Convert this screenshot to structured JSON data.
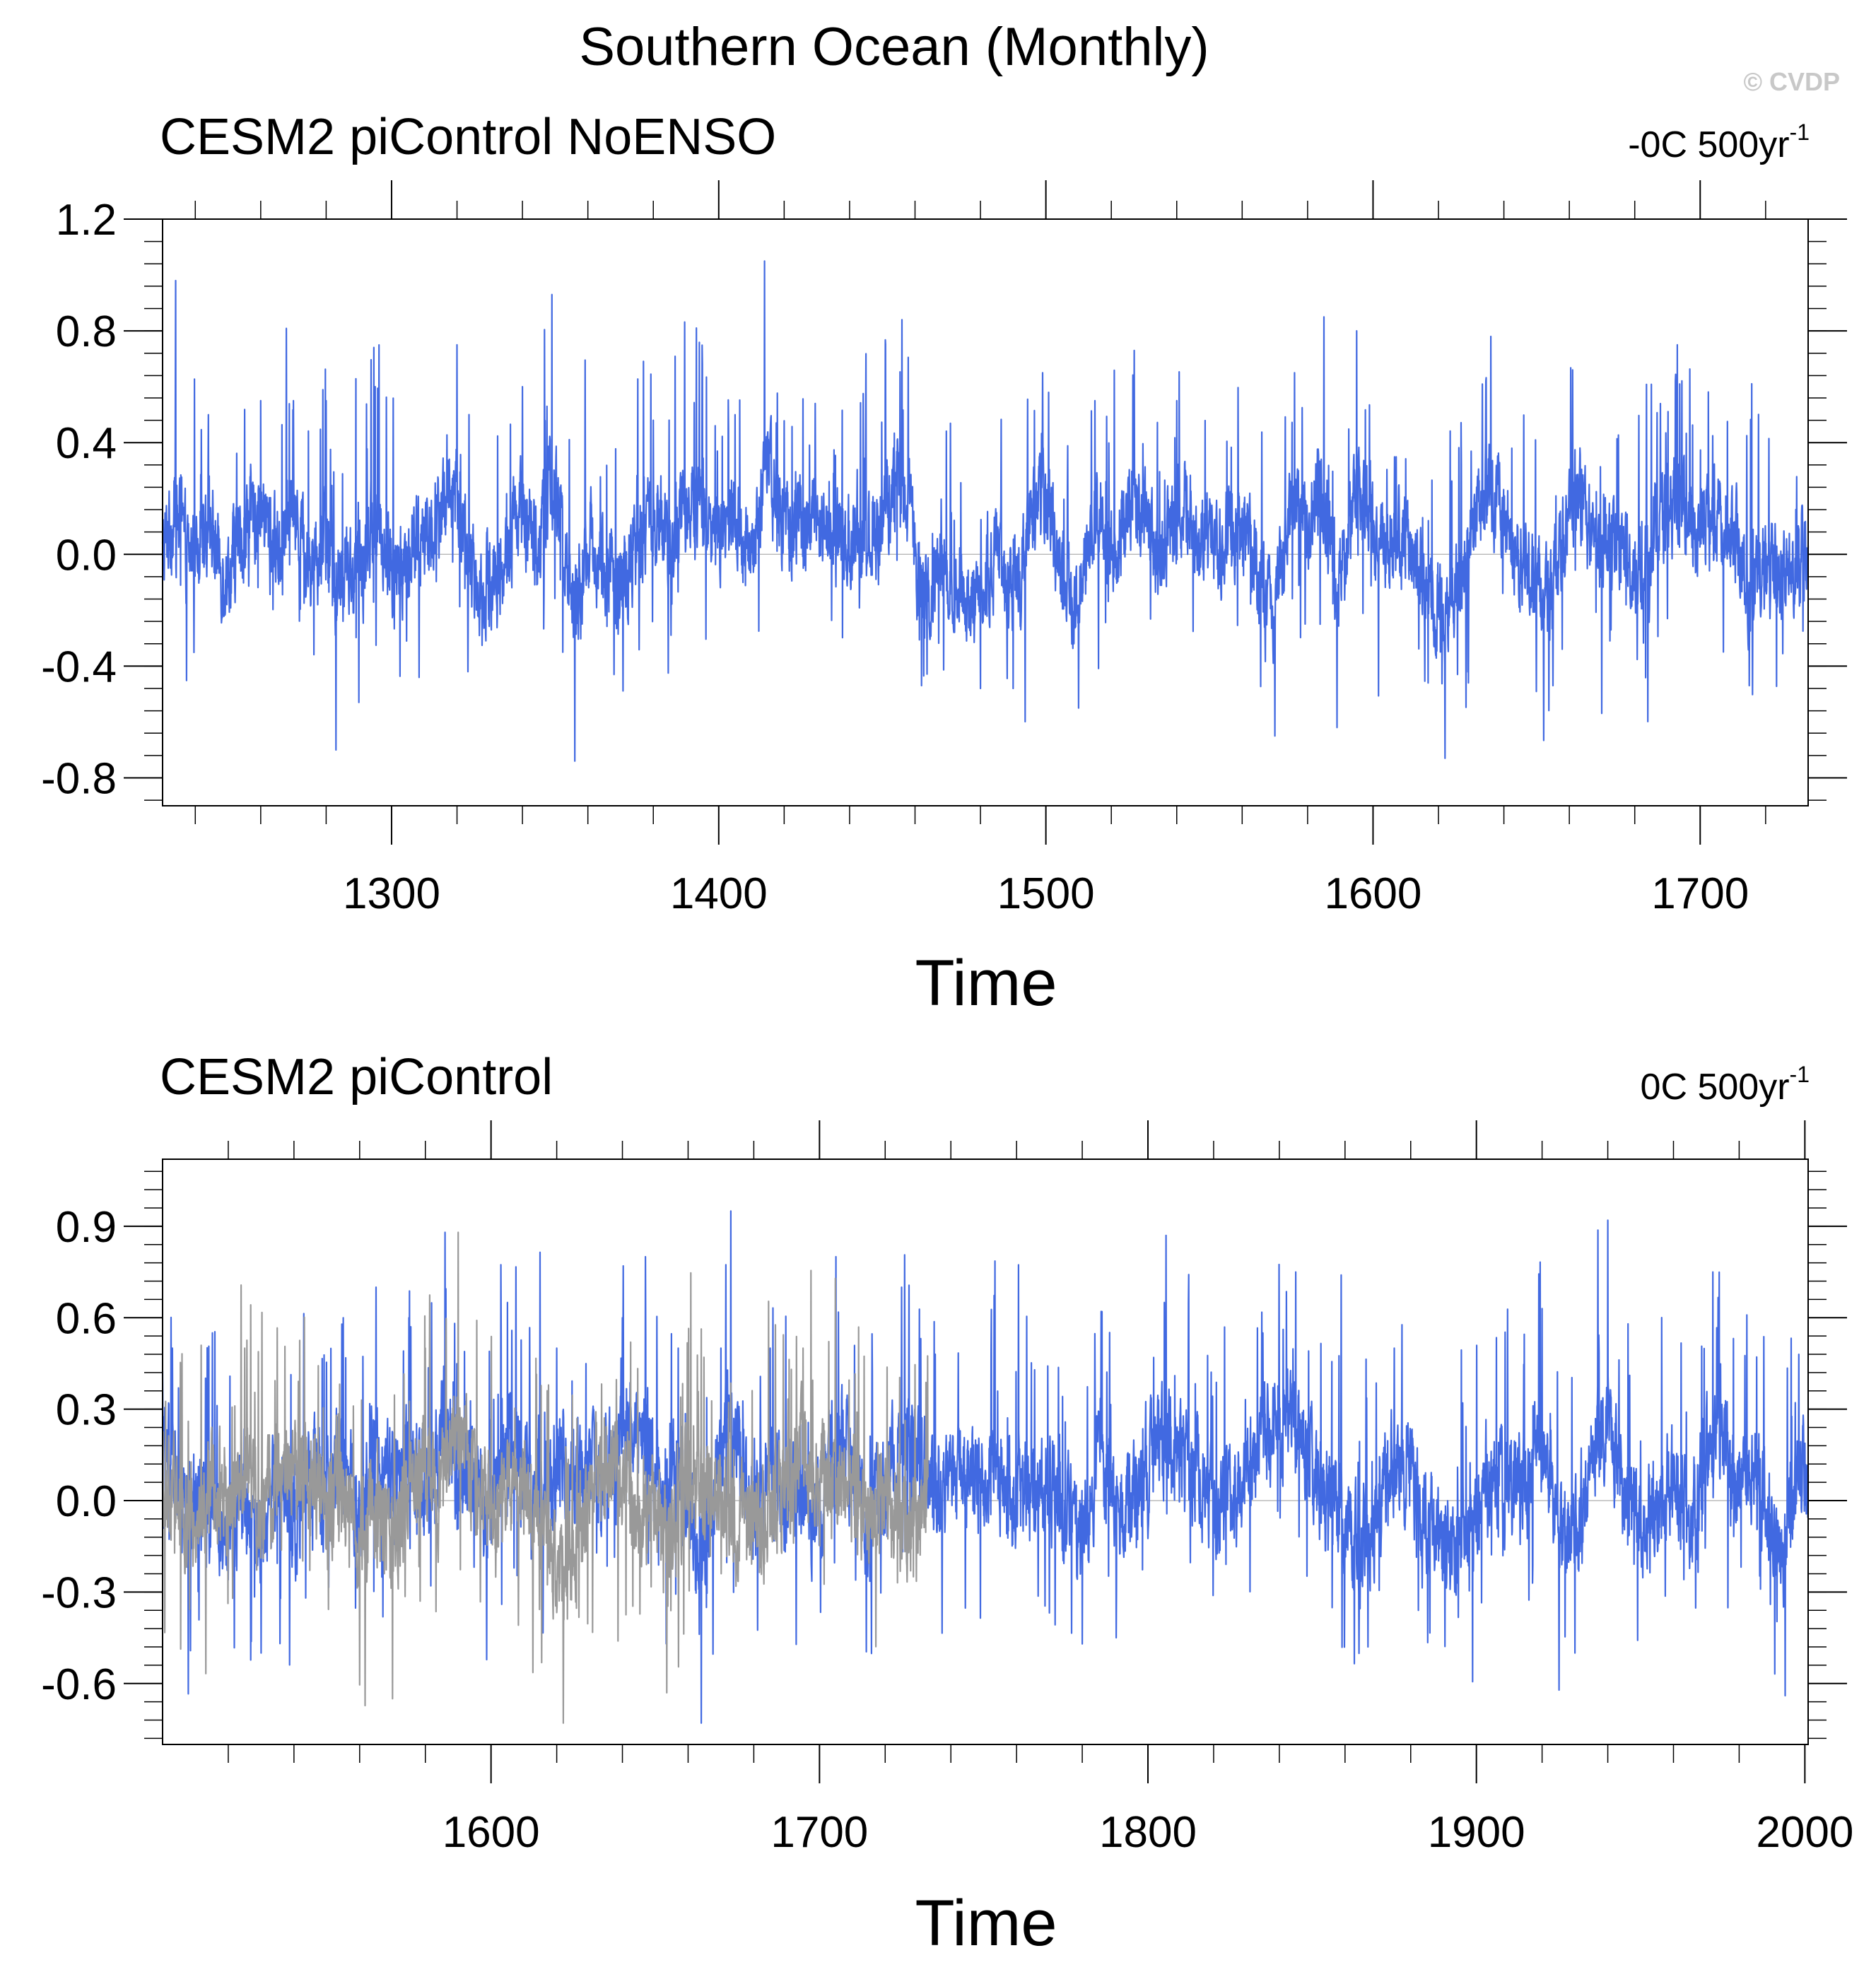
{
  "figure": {
    "title": "Southern Ocean (Monthly)",
    "watermark": "© CVDP"
  },
  "colors": {
    "primary_series": "#4169e1",
    "overlay_series": "#999999",
    "frame": "#000000"
  },
  "chart_data": [
    {
      "type": "line",
      "title": "CESM2 piControl NoENSO",
      "trend_value": "-0C 500yr",
      "trend_exp": "-1",
      "xlabel": "Time",
      "ylabel": "",
      "xlim": [
        1230,
        1733
      ],
      "ylim": [
        -0.9,
        1.2
      ],
      "xticks": [
        1300,
        1400,
        1500,
        1600,
        1700
      ],
      "xtick_labels": [
        "1300",
        "1400",
        "1500",
        "1600",
        "1700"
      ],
      "yticks": [
        -0.8,
        -0.4,
        0.0,
        0.4,
        0.8,
        1.2
      ],
      "ytick_labels": [
        "-0.8",
        "-0.4",
        "0.0",
        "0.4",
        "0.8",
        "1.2"
      ],
      "series": [
        {
          "name": "CESM2 piControl NoENSO",
          "color": "#4169e1",
          "x_start": 1230,
          "x_end": 1733,
          "anchors": [
            [
              1230,
              -0.4
            ],
            [
              1232,
              0.15
            ],
            [
              1234,
              0.98
            ],
            [
              1236,
              -0.2
            ],
            [
              1240,
              0.1
            ],
            [
              1244,
              0.5
            ],
            [
              1248,
              -0.3
            ],
            [
              1255,
              0.2
            ],
            [
              1260,
              0.55
            ],
            [
              1265,
              -0.1
            ],
            [
              1270,
              0.55
            ],
            [
              1276,
              -0.3
            ],
            [
              1280,
              0.55
            ],
            [
              1283,
              -0.7
            ],
            [
              1287,
              0.1
            ],
            [
              1290,
              -0.53
            ],
            [
              1295,
              0.6
            ],
            [
              1300,
              -0.3
            ],
            [
              1310,
              0.2
            ],
            [
              1320,
              0.75
            ],
            [
              1325,
              -0.4
            ],
            [
              1334,
              -0.2
            ],
            [
              1340,
              0.6
            ],
            [
              1344,
              -0.1
            ],
            [
              1349,
              0.93
            ],
            [
              1356,
              -0.74
            ],
            [
              1360,
              0.2
            ],
            [
              1370,
              -0.4
            ],
            [
              1380,
              0.48
            ],
            [
              1385,
              0.1
            ],
            [
              1395,
              0.68
            ],
            [
              1400,
              0.1
            ],
            [
              1405,
              0.5
            ],
            [
              1410,
              -0.3
            ],
            [
              1414,
              1.05
            ],
            [
              1420,
              0.2
            ],
            [
              1430,
              0.4
            ],
            [
              1440,
              0.12
            ],
            [
              1450,
              0.3
            ],
            [
              1456,
              0.84
            ],
            [
              1462,
              -0.47
            ],
            [
              1470,
              -0.1
            ],
            [
              1480,
              -0.48
            ],
            [
              1485,
              0.2
            ],
            [
              1490,
              -0.48
            ],
            [
              1499,
              0.65
            ],
            [
              1505,
              -0.2
            ],
            [
              1510,
              -0.55
            ],
            [
              1515,
              0.55
            ],
            [
              1520,
              0.0
            ],
            [
              1527,
              0.73
            ],
            [
              1535,
              -0.2
            ],
            [
              1540,
              0.55
            ],
            [
              1550,
              0.1
            ],
            [
              1560,
              0.3
            ],
            [
              1570,
              -0.65
            ],
            [
              1576,
              0.65
            ],
            [
              1580,
              0.2
            ],
            [
              1585,
              0.85
            ],
            [
              1589,
              -0.62
            ],
            [
              1595,
              0.8
            ],
            [
              1600,
              0.0
            ],
            [
              1610,
              0.2
            ],
            [
              1615,
              -0.3
            ],
            [
              1622,
              -0.73
            ],
            [
              1630,
              0.2
            ],
            [
              1636,
              0.78
            ],
            [
              1645,
              -0.1
            ],
            [
              1655,
              -0.47
            ],
            [
              1661,
              0.66
            ],
            [
              1670,
              0.0
            ],
            [
              1675,
              0.35
            ],
            [
              1680,
              -0.3
            ],
            [
              1687,
              0.2
            ],
            [
              1693,
              0.75
            ],
            [
              1700,
              0.2
            ],
            [
              1710,
              0.45
            ],
            [
              1715,
              -0.47
            ],
            [
              1720,
              0.0
            ],
            [
              1725,
              -0.3
            ],
            [
              1733,
              0.0
            ]
          ]
        }
      ]
    },
    {
      "type": "line",
      "title": "CESM2 piControl",
      "trend_value": "0C 500yr",
      "trend_exp": "-1",
      "xlabel": "Time",
      "ylabel": "",
      "xlim": [
        1500,
        2001
      ],
      "ylim": [
        -0.8,
        1.12
      ],
      "xticks": [
        1600,
        1700,
        1800,
        1900,
        2000
      ],
      "xtick_labels": [
        "1600",
        "1700",
        "1800",
        "1900",
        "2000"
      ],
      "yticks": [
        -0.6,
        -0.3,
        0.0,
        0.3,
        0.6,
        0.9
      ],
      "ytick_labels": [
        "-0.6",
        "-0.3",
        "0.0",
        "0.3",
        "0.6",
        "0.9"
      ],
      "series": [
        {
          "name": "CESM2 piControl",
          "color": "#4169e1",
          "x_start": 1500,
          "x_end": 2001,
          "anchors": [
            [
              1500,
              0.3
            ],
            [
              1503,
              0.5
            ],
            [
              1507,
              -0.3
            ],
            [
              1510,
              0.1
            ],
            [
              1520,
              -0.3
            ],
            [
              1525,
              0.2
            ],
            [
              1530,
              -0.5
            ],
            [
              1535,
              0.4
            ],
            [
              1540,
              -0.3
            ],
            [
              1545,
              0.45
            ],
            [
              1550,
              -0.2
            ],
            [
              1555,
              0.6
            ],
            [
              1560,
              -0.3
            ],
            [
              1565,
              0.7
            ],
            [
              1570,
              0.0
            ],
            [
              1575,
              0.6
            ],
            [
              1580,
              -0.3
            ],
            [
              1583,
              0.45
            ],
            [
              1586,
              0.88
            ],
            [
              1590,
              0.0
            ],
            [
              1595,
              0.3
            ],
            [
              1600,
              -0.2
            ],
            [
              1605,
              0.65
            ],
            [
              1615,
              0.0
            ],
            [
              1620,
              0.5
            ],
            [
              1630,
              0.1
            ],
            [
              1640,
              0.6
            ],
            [
              1647,
              0.8
            ],
            [
              1652,
              -0.2
            ],
            [
              1657,
              0.5
            ],
            [
              1660,
              0.0
            ],
            [
              1664,
              -0.73
            ],
            [
              1670,
              0.5
            ],
            [
              1673,
              0.95
            ],
            [
              1680,
              -0.2
            ],
            [
              1685,
              0.5
            ],
            [
              1690,
              -0.2
            ],
            [
              1695,
              0.3
            ],
            [
              1700,
              -0.3
            ],
            [
              1705,
              0.8
            ],
            [
              1710,
              0.2
            ],
            [
              1715,
              -0.3
            ],
            [
              1725,
              0.7
            ],
            [
              1730,
              0.3
            ],
            [
              1740,
              0.1
            ],
            [
              1750,
              0.3
            ],
            [
              1760,
              0.0
            ],
            [
              1770,
              0.15
            ],
            [
              1780,
              -0.47
            ],
            [
              1786,
              0.62
            ],
            [
              1790,
              -0.2
            ],
            [
              1800,
              0.2
            ],
            [
              1805,
              0.65
            ],
            [
              1815,
              0.2
            ],
            [
              1820,
              -0.2
            ],
            [
              1835,
              0.55
            ],
            [
              1845,
              0.75
            ],
            [
              1850,
              0.2
            ],
            [
              1860,
              -0.2
            ],
            [
              1867,
              -0.48
            ],
            [
              1875,
              0.5
            ],
            [
              1880,
              0.2
            ],
            [
              1885,
              -0.2
            ],
            [
              1893,
              -0.4
            ],
            [
              1900,
              -0.2
            ],
            [
              1905,
              0.2
            ],
            [
              1915,
              0.1
            ],
            [
              1920,
              0.63
            ],
            [
              1925,
              -0.2
            ],
            [
              1930,
              -0.5
            ],
            [
              1935,
              0.3
            ],
            [
              1940,
              0.92
            ],
            [
              1945,
              0.0
            ],
            [
              1950,
              -0.4
            ],
            [
              1960,
              0.3
            ],
            [
              1965,
              -0.3
            ],
            [
              1972,
              0.75
            ],
            [
              1980,
              0.0
            ],
            [
              1985,
              0.4
            ],
            [
              1994,
              -0.64
            ],
            [
              1997,
              0.1
            ],
            [
              2001,
              0.35
            ]
          ]
        },
        {
          "name": "CESM2 piControl NoENSO",
          "color": "#999999",
          "x_start": 1500,
          "x_end": 1733,
          "anchors": [
            [
              1500,
              -0.1
            ],
            [
              1505,
              0.1
            ],
            [
              1510,
              -0.3
            ],
            [
              1515,
              0.2
            ],
            [
              1520,
              -0.1
            ],
            [
              1525,
              0.5
            ],
            [
              1530,
              -0.3
            ],
            [
              1535,
              0.4
            ],
            [
              1540,
              0.2
            ],
            [
              1545,
              0.3
            ],
            [
              1550,
              -0.2
            ],
            [
              1555,
              0.2
            ],
            [
              1560,
              -0.4
            ],
            [
              1565,
              0.1
            ],
            [
              1570,
              -0.65
            ],
            [
              1575,
              0.2
            ],
            [
              1580,
              0.5
            ],
            [
              1585,
              -0.2
            ],
            [
              1590,
              0.88
            ],
            [
              1595,
              0.1
            ],
            [
              1600,
              -0.1
            ],
            [
              1610,
              0.2
            ],
            [
              1615,
              -0.3
            ],
            [
              1622,
              -0.73
            ],
            [
              1630,
              0.1
            ],
            [
              1636,
              0.35
            ],
            [
              1645,
              -0.2
            ],
            [
              1650,
              0.0
            ],
            [
              1655,
              -0.4
            ],
            [
              1661,
              0.3
            ],
            [
              1670,
              0.0
            ],
            [
              1680,
              -0.3
            ],
            [
              1690,
              0.1
            ],
            [
              1695,
              0.5
            ],
            [
              1700,
              0.2
            ],
            [
              1710,
              0.1
            ],
            [
              1715,
              -0.3
            ],
            [
              1720,
              0.0
            ],
            [
              1725,
              -0.2
            ],
            [
              1733,
              0.0
            ]
          ]
        }
      ]
    }
  ]
}
